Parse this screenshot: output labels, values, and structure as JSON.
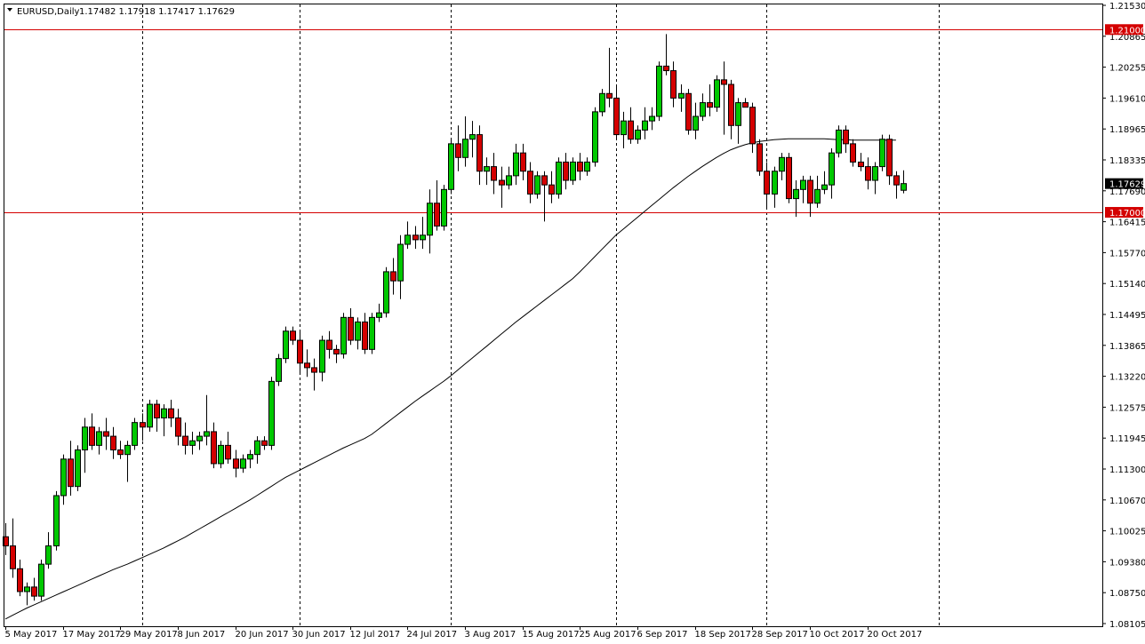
{
  "header": {
    "symbol": "EURUSD,Daily",
    "ohlc": "1.17482 1.17918 1.17417 1.17629"
  },
  "colors": {
    "bull": "#00c800",
    "bear": "#d40000",
    "ma": "#000000",
    "hline": "#d40000",
    "hline_label_bg": "#d40000",
    "last_label_bg": "#000000"
  },
  "chart_data": {
    "type": "candlestick",
    "symbol": "EURUSD",
    "timeframe": "Daily",
    "ylim": [
      1.08,
      1.2153
    ],
    "y_ticks": [
      "1.21530",
      "1.20865",
      "1.20255",
      "1.19610",
      "1.18965",
      "1.18335",
      "1.17690",
      "1.16415",
      "1.15770",
      "1.15140",
      "1.14495",
      "1.13865",
      "1.13220",
      "1.12575",
      "1.11945",
      "1.11300",
      "1.10670",
      "1.10025",
      "1.09380",
      "1.08750",
      "1.08105"
    ],
    "x_ticks": [
      {
        "i": 0,
        "label": "5 May 2017"
      },
      {
        "i": 8,
        "label": "17 May 2017"
      },
      {
        "i": 16,
        "label": "29 May 2017"
      },
      {
        "i": 24,
        "label": "8 Jun 2017"
      },
      {
        "i": 32,
        "label": "20 Jun 2017"
      },
      {
        "i": 40,
        "label": "30 Jun 2017"
      },
      {
        "i": 48,
        "label": "12 Jul 2017"
      },
      {
        "i": 56,
        "label": "24 Jul 2017"
      },
      {
        "i": 64,
        "label": "3 Aug 2017"
      },
      {
        "i": 72,
        "label": "15 Aug 2017"
      },
      {
        "i": 80,
        "label": "25 Aug 2017"
      },
      {
        "i": 88,
        "label": "6 Sep 2017"
      },
      {
        "i": 96,
        "label": "18 Sep 2017"
      },
      {
        "i": 104,
        "label": "28 Sep 2017"
      },
      {
        "i": 112,
        "label": "10 Oct 2017"
      },
      {
        "i": 120,
        "label": "20 Oct 2017"
      }
    ],
    "separators": [
      19,
      41,
      62,
      85,
      106,
      130
    ],
    "horizontal_lines": [
      {
        "value": 1.21,
        "label": "1.21000"
      },
      {
        "value": 1.17,
        "label": "1.17000"
      }
    ],
    "last_price": {
      "value": 1.17629,
      "label": "1.17629"
    },
    "candles": [
      [
        1.099,
        1.102,
        1.095,
        1.097
      ],
      [
        1.097,
        1.103,
        1.09,
        1.092
      ],
      [
        1.092,
        1.094,
        1.086,
        1.087
      ],
      [
        1.087,
        1.089,
        1.084,
        1.088
      ],
      [
        1.088,
        1.09,
        1.085,
        1.086
      ],
      [
        1.086,
        1.094,
        1.085,
        1.093
      ],
      [
        1.093,
        1.1,
        1.092,
        1.097
      ],
      [
        1.097,
        1.109,
        1.096,
        1.108
      ],
      [
        1.108,
        1.117,
        1.106,
        1.116
      ],
      [
        1.116,
        1.12,
        1.108,
        1.11
      ],
      [
        1.11,
        1.119,
        1.109,
        1.118
      ],
      [
        1.118,
        1.125,
        1.113,
        1.123
      ],
      [
        1.123,
        1.126,
        1.118,
        1.119
      ],
      [
        1.119,
        1.123,
        1.117,
        1.122
      ],
      [
        1.122,
        1.125,
        1.118,
        1.121
      ],
      [
        1.121,
        1.123,
        1.116,
        1.118
      ],
      [
        1.118,
        1.12,
        1.116,
        1.117
      ],
      [
        1.117,
        1.12,
        1.111,
        1.119
      ],
      [
        1.119,
        1.125,
        1.118,
        1.124
      ],
      [
        1.124,
        1.126,
        1.12,
        1.123
      ],
      [
        1.123,
        1.129,
        1.122,
        1.128
      ],
      [
        1.128,
        1.129,
        1.122,
        1.125
      ],
      [
        1.125,
        1.128,
        1.121,
        1.127
      ],
      [
        1.127,
        1.129,
        1.123,
        1.125
      ],
      [
        1.125,
        1.127,
        1.119,
        1.121
      ],
      [
        1.121,
        1.124,
        1.117,
        1.119
      ],
      [
        1.119,
        1.122,
        1.117,
        1.12
      ],
      [
        1.12,
        1.122,
        1.118,
        1.121
      ],
      [
        1.121,
        1.13,
        1.119,
        1.122
      ],
      [
        1.122,
        1.124,
        1.114,
        1.115
      ],
      [
        1.115,
        1.12,
        1.114,
        1.119
      ],
      [
        1.119,
        1.122,
        1.115,
        1.116
      ],
      [
        1.116,
        1.118,
        1.112,
        1.114
      ],
      [
        1.114,
        1.117,
        1.113,
        1.116
      ],
      [
        1.116,
        1.118,
        1.114,
        1.117
      ],
      [
        1.117,
        1.121,
        1.115,
        1.12
      ],
      [
        1.12,
        1.121,
        1.118,
        1.119
      ],
      [
        1.119,
        1.134,
        1.118,
        1.133
      ],
      [
        1.133,
        1.139,
        1.132,
        1.138
      ],
      [
        1.138,
        1.145,
        1.137,
        1.144
      ],
      [
        1.144,
        1.145,
        1.141,
        1.142
      ],
      [
        1.142,
        1.144,
        1.135,
        1.137
      ],
      [
        1.137,
        1.14,
        1.134,
        1.136
      ],
      [
        1.136,
        1.138,
        1.131,
        1.135
      ],
      [
        1.135,
        1.143,
        1.133,
        1.142
      ],
      [
        1.142,
        1.144,
        1.138,
        1.14
      ],
      [
        1.14,
        1.141,
        1.137,
        1.139
      ],
      [
        1.139,
        1.148,
        1.138,
        1.147
      ],
      [
        1.147,
        1.149,
        1.141,
        1.142
      ],
      [
        1.142,
        1.147,
        1.14,
        1.146
      ],
      [
        1.146,
        1.148,
        1.139,
        1.14
      ],
      [
        1.14,
        1.148,
        1.139,
        1.147
      ],
      [
        1.147,
        1.15,
        1.146,
        1.148
      ],
      [
        1.148,
        1.158,
        1.147,
        1.157
      ],
      [
        1.157,
        1.16,
        1.152,
        1.155
      ],
      [
        1.155,
        1.165,
        1.151,
        1.163
      ],
      [
        1.163,
        1.168,
        1.162,
        1.165
      ],
      [
        1.165,
        1.167,
        1.162,
        1.164
      ],
      [
        1.164,
        1.169,
        1.162,
        1.165
      ],
      [
        1.165,
        1.175,
        1.161,
        1.172
      ],
      [
        1.172,
        1.177,
        1.166,
        1.167
      ],
      [
        1.167,
        1.176,
        1.166,
        1.175
      ],
      [
        1.175,
        1.186,
        1.174,
        1.185
      ],
      [
        1.185,
        1.189,
        1.179,
        1.182
      ],
      [
        1.182,
        1.191,
        1.18,
        1.186
      ],
      [
        1.186,
        1.19,
        1.182,
        1.187
      ],
      [
        1.187,
        1.189,
        1.176,
        1.179
      ],
      [
        1.179,
        1.182,
        1.176,
        1.18
      ],
      [
        1.18,
        1.183,
        1.174,
        1.177
      ],
      [
        1.177,
        1.18,
        1.171,
        1.176
      ],
      [
        1.176,
        1.18,
        1.175,
        1.178
      ],
      [
        1.178,
        1.185,
        1.176,
        1.183
      ],
      [
        1.183,
        1.185,
        1.177,
        1.179
      ],
      [
        1.179,
        1.181,
        1.172,
        1.174
      ],
      [
        1.174,
        1.179,
        1.173,
        1.178
      ],
      [
        1.178,
        1.179,
        1.168,
        1.176
      ],
      [
        1.176,
        1.179,
        1.172,
        1.174
      ],
      [
        1.174,
        1.182,
        1.173,
        1.181
      ],
      [
        1.181,
        1.183,
        1.175,
        1.177
      ],
      [
        1.177,
        1.182,
        1.176,
        1.181
      ],
      [
        1.181,
        1.183,
        1.177,
        1.179
      ],
      [
        1.179,
        1.182,
        1.178,
        1.181
      ],
      [
        1.181,
        1.193,
        1.18,
        1.192
      ],
      [
        1.192,
        1.197,
        1.191,
        1.196
      ],
      [
        1.196,
        1.206,
        1.193,
        1.195
      ],
      [
        1.195,
        1.198,
        1.186,
        1.187
      ],
      [
        1.187,
        1.192,
        1.184,
        1.19
      ],
      [
        1.19,
        1.193,
        1.185,
        1.186
      ],
      [
        1.186,
        1.189,
        1.185,
        1.188
      ],
      [
        1.188,
        1.193,
        1.186,
        1.19
      ],
      [
        1.19,
        1.193,
        1.188,
        1.191
      ],
      [
        1.191,
        1.203,
        1.19,
        1.202
      ],
      [
        1.202,
        1.209,
        1.2,
        1.201
      ],
      [
        1.201,
        1.203,
        1.193,
        1.195
      ],
      [
        1.195,
        1.198,
        1.192,
        1.196
      ],
      [
        1.196,
        1.197,
        1.187,
        1.188
      ],
      [
        1.188,
        1.194,
        1.186,
        1.191
      ],
      [
        1.191,
        1.196,
        1.19,
        1.194
      ],
      [
        1.194,
        1.198,
        1.191,
        1.193
      ],
      [
        1.193,
        1.2,
        1.192,
        1.199
      ],
      [
        1.199,
        1.203,
        1.187,
        1.198
      ],
      [
        1.198,
        1.199,
        1.186,
        1.189
      ],
      [
        1.189,
        1.195,
        1.185,
        1.194
      ],
      [
        1.194,
        1.195,
        1.193,
        1.193
      ],
      [
        1.193,
        1.194,
        1.183,
        1.185
      ],
      [
        1.185,
        1.186,
        1.178,
        1.179
      ],
      [
        1.179,
        1.181,
        1.171,
        1.174
      ],
      [
        1.174,
        1.18,
        1.171,
        1.179
      ],
      [
        1.179,
        1.183,
        1.177,
        1.182
      ],
      [
        1.182,
        1.183,
        1.172,
        1.173
      ],
      [
        1.173,
        1.177,
        1.169,
        1.175
      ],
      [
        1.175,
        1.178,
        1.172,
        1.177
      ],
      [
        1.177,
        1.178,
        1.169,
        1.172
      ],
      [
        1.172,
        1.178,
        1.171,
        1.175
      ],
      [
        1.175,
        1.179,
        1.174,
        1.176
      ],
      [
        1.176,
        1.184,
        1.173,
        1.183
      ],
      [
        1.183,
        1.189,
        1.182,
        1.188
      ],
      [
        1.188,
        1.189,
        1.183,
        1.185
      ],
      [
        1.185,
        1.186,
        1.18,
        1.181
      ],
      [
        1.181,
        1.183,
        1.179,
        1.18
      ],
      [
        1.18,
        1.182,
        1.175,
        1.177
      ],
      [
        1.177,
        1.181,
        1.174,
        1.18
      ],
      [
        1.18,
        1.187,
        1.179,
        1.186
      ],
      [
        1.186,
        1.187,
        1.176,
        1.178
      ],
      [
        1.178,
        1.179,
        1.173,
        1.176
      ],
      [
        1.17482,
        1.17918,
        1.17417,
        1.17629
      ]
    ],
    "ma_series": [
      1.081,
      1.0818,
      1.0826,
      1.0834,
      1.0841,
      1.0848,
      1.0855,
      1.0862,
      1.0869,
      1.0876,
      1.0883,
      1.089,
      1.0897,
      1.0904,
      1.0911,
      1.0918,
      1.0924,
      1.093,
      1.0937,
      1.0944,
      1.0951,
      1.0958,
      1.0965,
      1.0973,
      1.0981,
      1.0989,
      1.0998,
      1.1007,
      1.1016,
      1.1025,
      1.1034,
      1.1043,
      1.1052,
      1.1061,
      1.107,
      1.108,
      1.109,
      1.11,
      1.111,
      1.112,
      1.1128,
      1.1136,
      1.1144,
      1.1152,
      1.116,
      1.1168,
      1.1176,
      1.1184,
      1.1191,
      1.1198,
      1.1205,
      1.1214,
      1.1226,
      1.1238,
      1.125,
      1.1262,
      1.1274,
      1.1286,
      1.1297,
      1.1308,
      1.1319,
      1.133,
      1.1342,
      1.1355,
      1.1368,
      1.1381,
      1.1394,
      1.1407,
      1.142,
      1.1433,
      1.1446,
      1.1459,
      1.1471,
      1.1483,
      1.1495,
      1.1507,
      1.1519,
      1.1531,
      1.1543,
      1.1555,
      1.157,
      1.1586,
      1.1602,
      1.1618,
      1.1634,
      1.165,
      1.1663,
      1.1676,
      1.1689,
      1.1702,
      1.1715,
      1.1728,
      1.1741,
      1.1754,
      1.1766,
      1.1778,
      1.1789,
      1.18,
      1.181,
      1.182,
      1.1829,
      1.1837,
      1.1843,
      1.1848,
      1.1852,
      1.1855,
      1.1857,
      1.1859,
      1.186,
      1.1861,
      1.1861,
      1.1861,
      1.1861,
      1.1861,
      1.1861,
      1.186,
      1.1859,
      1.1859,
      1.1858,
      1.1858,
      1.1858,
      1.1858,
      1.1858,
      1.1858,
      1.1858
    ]
  }
}
